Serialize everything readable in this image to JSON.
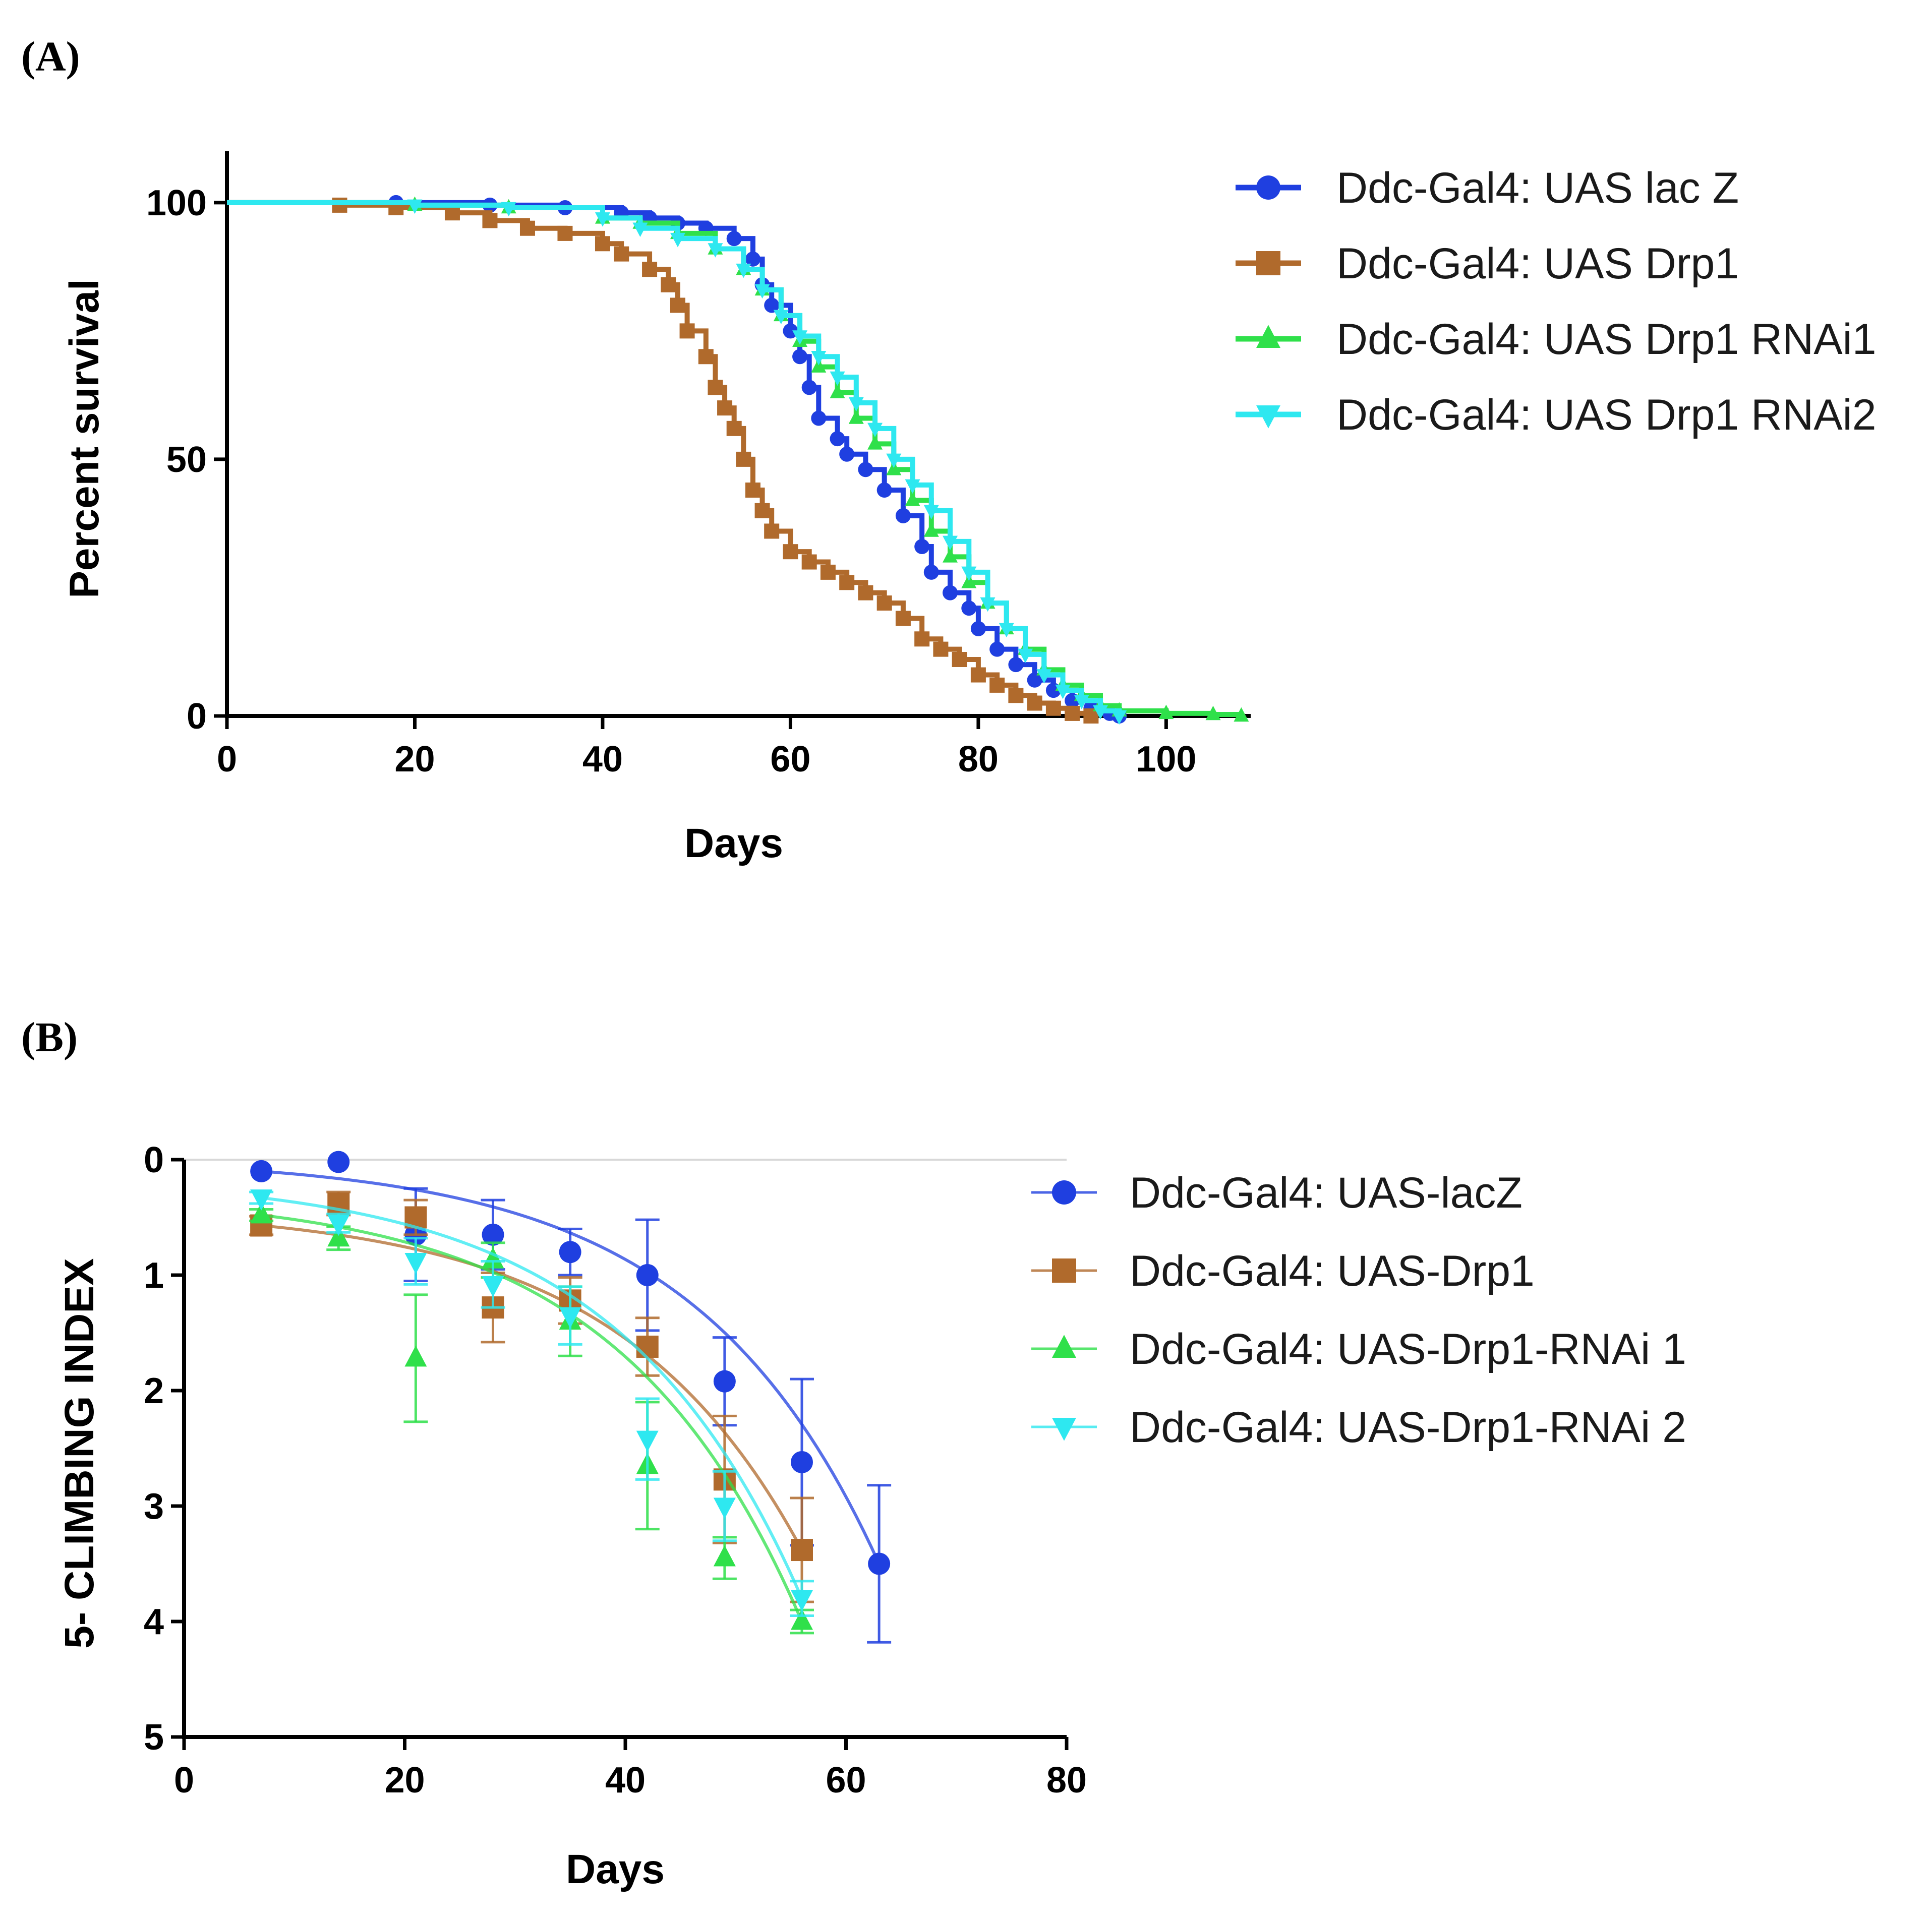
{
  "panels": {
    "a_label": "(A)",
    "b_label": "(B)"
  },
  "chart_data": [
    {
      "id": "A",
      "type": "line",
      "step": true,
      "xlabel": "Days",
      "ylabel": "Percent survival",
      "xlim": [
        0,
        109
      ],
      "ylim": [
        0,
        110
      ],
      "xticks": [
        0,
        20,
        40,
        60,
        80,
        100
      ],
      "yticks": [
        0,
        50,
        100
      ],
      "series": [
        {
          "name": "Ddc-Gal4: UAS lac Z",
          "color": "#1f3fe0",
          "marker": "circle",
          "points": [
            [
              0,
              100
            ],
            [
              18,
              100
            ],
            [
              28,
              99.5
            ],
            [
              36,
              99
            ],
            [
              42,
              98
            ],
            [
              45,
              97
            ],
            [
              48,
              96
            ],
            [
              51,
              95
            ],
            [
              54,
              93
            ],
            [
              56,
              89
            ],
            [
              57,
              84
            ],
            [
              58,
              80
            ],
            [
              60,
              75
            ],
            [
              61,
              70
            ],
            [
              62,
              64
            ],
            [
              63,
              58
            ],
            [
              65,
              54
            ],
            [
              66,
              51
            ],
            [
              68,
              48
            ],
            [
              70,
              44
            ],
            [
              72,
              39
            ],
            [
              74,
              33
            ],
            [
              75,
              28
            ],
            [
              77,
              24
            ],
            [
              79,
              21
            ],
            [
              80,
              17
            ],
            [
              82,
              13
            ],
            [
              84,
              10
            ],
            [
              86,
              7
            ],
            [
              88,
              5
            ],
            [
              90,
              3
            ],
            [
              92,
              1.5
            ],
            [
              94,
              0.5
            ],
            [
              95,
              0
            ]
          ]
        },
        {
          "name": "Ddc-Gal4: UAS Drp1",
          "color": "#b06a2c",
          "marker": "square",
          "points": [
            [
              0,
              100
            ],
            [
              12,
              99.5
            ],
            [
              18,
              99
            ],
            [
              24,
              98
            ],
            [
              28,
              96.5
            ],
            [
              32,
              95
            ],
            [
              36,
              94
            ],
            [
              40,
              92
            ],
            [
              42,
              90
            ],
            [
              45,
              87
            ],
            [
              47,
              84
            ],
            [
              48,
              80
            ],
            [
              49,
              75
            ],
            [
              51,
              70
            ],
            [
              52,
              64
            ],
            [
              53,
              60
            ],
            [
              54,
              56
            ],
            [
              55,
              50
            ],
            [
              56,
              44
            ],
            [
              57,
              40
            ],
            [
              58,
              36
            ],
            [
              60,
              32
            ],
            [
              62,
              30
            ],
            [
              64,
              28
            ],
            [
              66,
              26
            ],
            [
              68,
              24
            ],
            [
              70,
              22
            ],
            [
              72,
              19
            ],
            [
              74,
              15
            ],
            [
              76,
              13
            ],
            [
              78,
              11
            ],
            [
              80,
              8
            ],
            [
              82,
              6
            ],
            [
              84,
              4
            ],
            [
              86,
              2.5
            ],
            [
              88,
              1.5
            ],
            [
              90,
              0.5
            ],
            [
              92,
              0
            ]
          ]
        },
        {
          "name": "Ddc-Gal4: UAS Drp1 RNAi1",
          "color": "#2fe04a",
          "marker": "triangle",
          "points": [
            [
              0,
              100
            ],
            [
              20,
              99.5
            ],
            [
              30,
              99
            ],
            [
              40,
              97
            ],
            [
              44,
              96
            ],
            [
              48,
              94
            ],
            [
              52,
              91
            ],
            [
              55,
              87
            ],
            [
              57,
              83
            ],
            [
              59,
              78
            ],
            [
              61,
              73
            ],
            [
              63,
              68
            ],
            [
              65,
              63
            ],
            [
              67,
              58
            ],
            [
              69,
              53
            ],
            [
              71,
              48
            ],
            [
              73,
              42
            ],
            [
              75,
              36
            ],
            [
              77,
              31
            ],
            [
              79,
              26
            ],
            [
              81,
              22
            ],
            [
              83,
              17
            ],
            [
              85,
              13
            ],
            [
              87,
              9
            ],
            [
              89,
              6
            ],
            [
              91,
              4
            ],
            [
              93,
              2
            ],
            [
              95,
              1
            ],
            [
              100,
              0.5
            ],
            [
              105,
              0.3
            ],
            [
              108,
              0
            ]
          ]
        },
        {
          "name": "Ddc-Gal4: UAS Drp1 RNAi2",
          "color": "#2ee8f0",
          "marker": "triangle-down",
          "points": [
            [
              0,
              100
            ],
            [
              20,
              99.5
            ],
            [
              30,
              99
            ],
            [
              40,
              97
            ],
            [
              44,
              95
            ],
            [
              48,
              93
            ],
            [
              52,
              91
            ],
            [
              55,
              87
            ],
            [
              57,
              83
            ],
            [
              59,
              78
            ],
            [
              61,
              74
            ],
            [
              63,
              70
            ],
            [
              65,
              66
            ],
            [
              67,
              61
            ],
            [
              69,
              56
            ],
            [
              71,
              50
            ],
            [
              73,
              45
            ],
            [
              75,
              40
            ],
            [
              77,
              34
            ],
            [
              79,
              28
            ],
            [
              81,
              22
            ],
            [
              83,
              17
            ],
            [
              85,
              12
            ],
            [
              87,
              8
            ],
            [
              89,
              5
            ],
            [
              91,
              3
            ],
            [
              93,
              1
            ],
            [
              95,
              0
            ]
          ]
        }
      ]
    },
    {
      "id": "B",
      "type": "scatter",
      "fit": "curve",
      "xlabel": "Days",
      "ylabel": "5- CLIMBING INDEX",
      "xlim": [
        0,
        80
      ],
      "ylim": [
        0,
        5
      ],
      "y_inverted": true,
      "xticks": [
        0,
        20,
        40,
        60,
        80
      ],
      "yticks": [
        0,
        1,
        2,
        3,
        4,
        5
      ],
      "series": [
        {
          "name": "Ddc-Gal4: UAS-lacZ",
          "color": "#1f3fe0",
          "marker": "circle",
          "x": [
            7,
            14,
            21,
            28,
            35,
            42,
            49,
            56,
            63
          ],
          "y": [
            0.1,
            0.02,
            0.65,
            0.65,
            0.8,
            1.0,
            1.92,
            2.62,
            3.5
          ],
          "err": [
            0,
            0,
            0.4,
            0.3,
            0.2,
            0.48,
            0.38,
            0.72,
            0.68
          ]
        },
        {
          "name": "Ddc-Gal4: UAS-Drp1",
          "color": "#b06a2c",
          "marker": "square",
          "x": [
            7,
            14,
            21,
            28,
            35,
            42,
            49,
            56
          ],
          "y": [
            0.57,
            0.38,
            0.5,
            1.28,
            1.22,
            1.62,
            2.77,
            3.38
          ],
          "err": [
            0.08,
            0.1,
            0.15,
            0.3,
            0.2,
            0.25,
            0.55,
            0.45
          ]
        },
        {
          "name": "Ddc-Gal4: UAS-Drp1-RNAi 1",
          "color": "#2fe04a",
          "marker": "triangle",
          "x": [
            7,
            14,
            21,
            28,
            35,
            42,
            49,
            56
          ],
          "y": [
            0.48,
            0.68,
            1.72,
            0.87,
            1.4,
            2.65,
            3.45,
            4.0
          ],
          "err": [
            0.05,
            0.1,
            0.55,
            0.15,
            0.3,
            0.55,
            0.18,
            0.1
          ]
        },
        {
          "name": "Ddc-Gal4: UAS-Drp1-RNAi 2",
          "color": "#2ee8f0",
          "marker": "triangle-down",
          "x": [
            7,
            14,
            21,
            28,
            35,
            42,
            49,
            56
          ],
          "y": [
            0.33,
            0.55,
            0.88,
            1.08,
            1.35,
            2.42,
            3.0,
            3.8
          ],
          "err": [
            0.05,
            0.08,
            0.2,
            0.2,
            0.25,
            0.35,
            0.3,
            0.15
          ]
        }
      ]
    }
  ]
}
